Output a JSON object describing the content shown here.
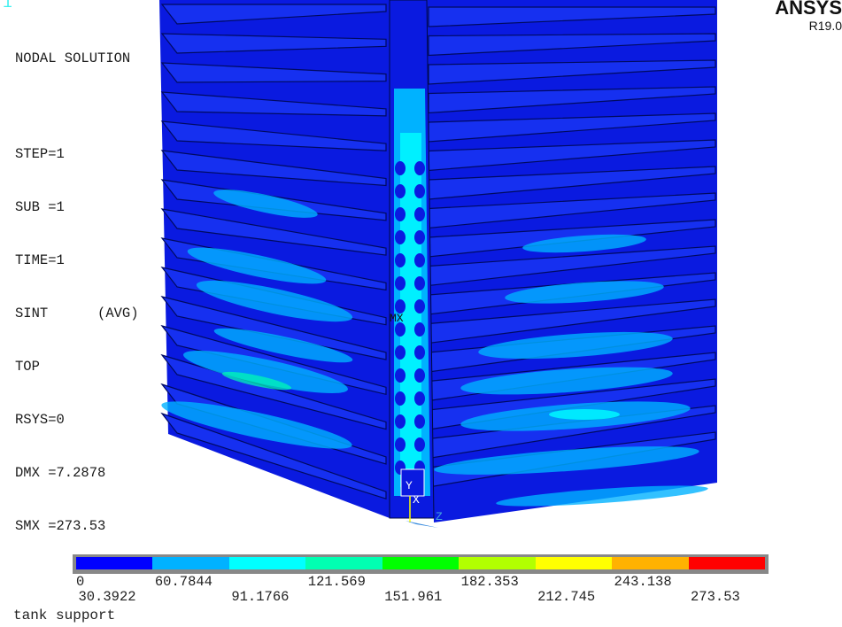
{
  "window_number": "1",
  "info": {
    "heading": "NODAL SOLUTION",
    "lines": [
      "STEP=1",
      "SUB =1",
      "TIME=1",
      "SINT      (AVG)",
      "TOP",
      "RSYS=0",
      "DMX =7.2878",
      "SMX =273.53"
    ]
  },
  "brand": {
    "logo": "ANSYS",
    "version": "R19.0"
  },
  "markers": {
    "max_label": "MX",
    "axis_y": "Y",
    "axis_x": "X",
    "axis_z": "Z"
  },
  "legend": {
    "colors": [
      "#0000ff",
      "#00b2ff",
      "#00ffff",
      "#00ffb2",
      "#00ff00",
      "#b2ff00",
      "#ffff00",
      "#ffb200",
      "#ff0000"
    ],
    "top_labels": [
      "0",
      "60.7844",
      "121.569",
      "182.353",
      "243.138"
    ],
    "bottom_labels": [
      "30.3922",
      "91.1766",
      "151.961",
      "212.745",
      "273.53"
    ]
  },
  "title": "tank support"
}
